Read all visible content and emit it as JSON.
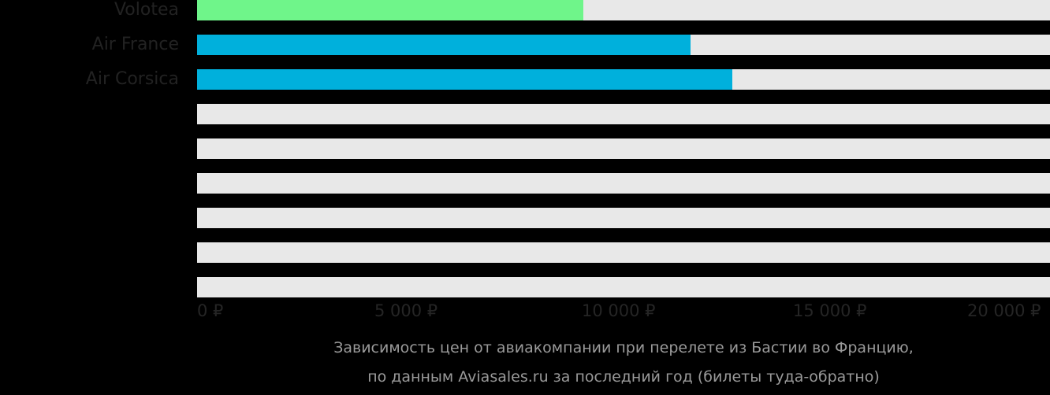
{
  "chart_data": {
    "type": "bar",
    "orientation": "horizontal",
    "title": "Зависимость цен от авиакомпании при перелете из Бастии во Францию, по данным Aviasales.ru за последний год (билеты туда-обратно)",
    "xlabel": "",
    "ylabel": "",
    "xlim": [
      0,
      20000
    ],
    "grid": false,
    "categories": [
      "Volotea",
      "Air France",
      "Air Corsica",
      "",
      "",
      "",
      "",
      "",
      ""
    ],
    "values": [
      9070,
      11600,
      12580,
      null,
      null,
      null,
      null,
      null,
      null
    ],
    "bar_colors": [
      "#6ff58a",
      "#00b0dc",
      "#00b0dc",
      null,
      null,
      null,
      null,
      null,
      null
    ],
    "x_ticks": [
      0,
      5000,
      10000,
      15000,
      20000
    ],
    "x_tick_labels": [
      "0 ₽",
      "5 000 ₽",
      "10 000 ₽",
      "15 000 ₽",
      "20 000 ₽"
    ],
    "currency": "₽"
  },
  "rows": [
    {
      "label": "Volotea",
      "value": 9070,
      "color": "#6ff58a"
    },
    {
      "label": "Air France",
      "value": 11600,
      "color": "#00b0dc"
    },
    {
      "label": "Air Corsica",
      "value": 12580,
      "color": "#00b0dc"
    },
    {
      "label": "",
      "value": null,
      "color": null
    },
    {
      "label": "",
      "value": null,
      "color": null
    },
    {
      "label": "",
      "value": null,
      "color": null
    },
    {
      "label": "",
      "value": null,
      "color": null
    },
    {
      "label": "",
      "value": null,
      "color": null
    },
    {
      "label": "",
      "value": null,
      "color": null
    }
  ],
  "axis": {
    "ticks": [
      "0 ₽",
      "5 000 ₽",
      "10 000 ₽",
      "15 000 ₽",
      "20 000 ₽"
    ]
  },
  "caption": {
    "line1": "Зависимость цен от авиакомпании при перелете из Бастии во Францию,",
    "line2": "по данным Aviasales.ru за последний год (билеты туда-обратно)"
  },
  "colors": {
    "background": "#000000",
    "track": "#e8e8e8",
    "highlight": "#6ff58a",
    "primary": "#00b0dc",
    "label": "#222222",
    "caption": "#9a9a9a"
  }
}
